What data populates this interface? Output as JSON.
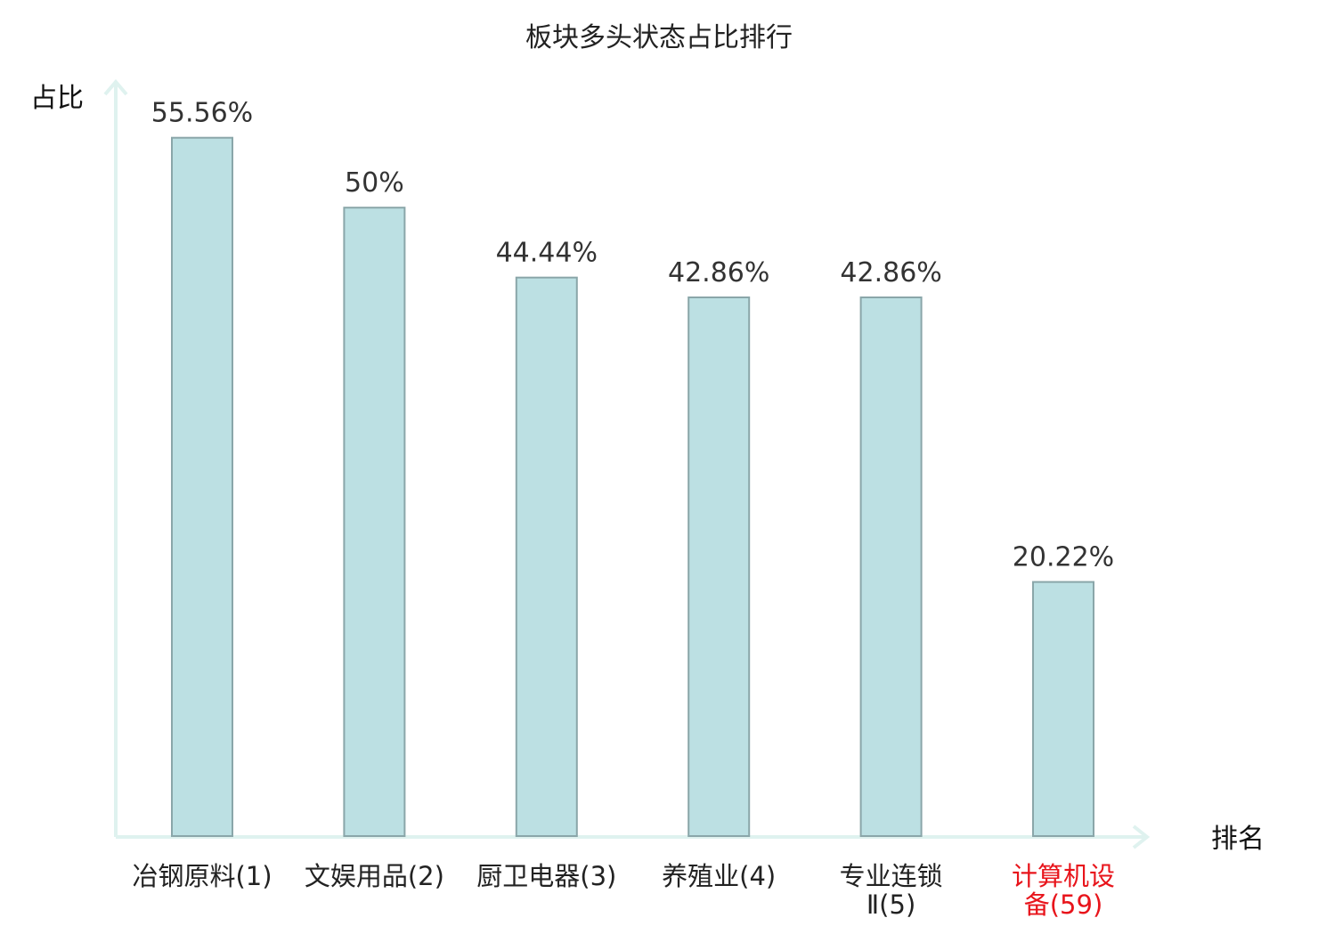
{
  "chart_data": {
    "type": "bar",
    "title": "板块多头状态占比排行",
    "xlabel": "排名",
    "ylabel": "占比",
    "ylim": [
      0,
      60
    ],
    "grid": false,
    "categories": [
      {
        "lines": [
          "冶钢原料(1)"
        ],
        "highlight": false
      },
      {
        "lines": [
          "文娱用品(2)"
        ],
        "highlight": false
      },
      {
        "lines": [
          "厨卫电器(3)"
        ],
        "highlight": false
      },
      {
        "lines": [
          "养殖业(4)"
        ],
        "highlight": false
      },
      {
        "lines": [
          "专业连锁",
          "Ⅱ(5)"
        ],
        "highlight": false
      },
      {
        "lines": [
          "计算机设",
          "备(59)"
        ],
        "highlight": true
      }
    ],
    "values": [
      55.56,
      50,
      44.44,
      42.86,
      42.86,
      20.22
    ],
    "value_labels": [
      "55.56%",
      "50%",
      "44.44%",
      "42.86%",
      "42.86%",
      "20.22%"
    ],
    "colors": {
      "bar_fill": "#bce0e3",
      "bar_stroke": "#8aa6a9",
      "axis": "#dff2ef",
      "highlight_text": "#e8141b"
    }
  }
}
